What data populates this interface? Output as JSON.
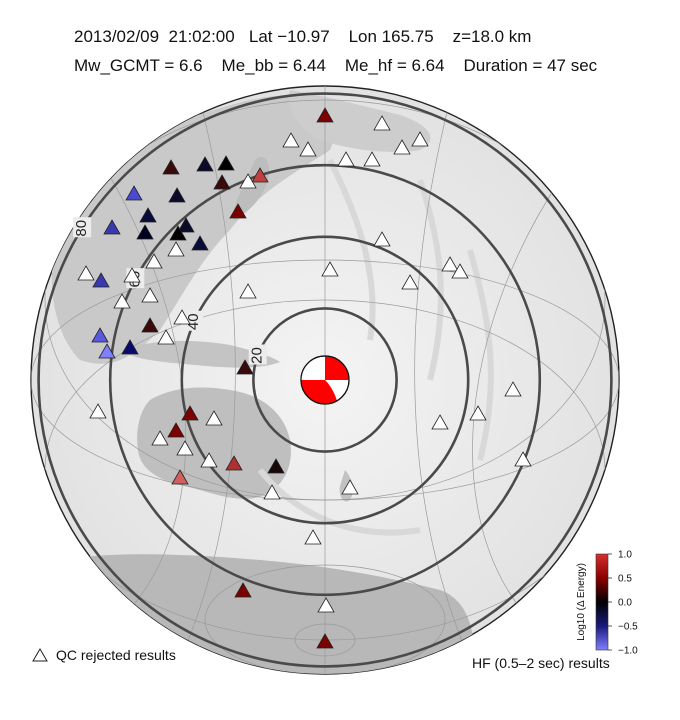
{
  "header": {
    "line1": "2013/02/09  21:02:00   Lat −10.97    Lon 165.75    z=18.0 km",
    "line2": "Mw_GCMT = 6.6    Me_bb = 6.44    Me_hf = 6.64    Duration = 47 sec"
  },
  "distance_rings": [
    {
      "deg": 20,
      "label": "20"
    },
    {
      "deg": 40,
      "label": "40"
    },
    {
      "deg": 60,
      "label": "60"
    },
    {
      "deg": 80,
      "label": "80"
    }
  ],
  "colorbar": {
    "title": "Log10 (Δ Energy)",
    "ticks": [
      "1.0",
      "0.5",
      "0.0",
      "−0.5",
      "−1.0"
    ],
    "colors": {
      "high": "#c62828",
      "mid": "#000000",
      "low": "#5b5bff"
    }
  },
  "legend": {
    "qc_rejected": "QC rejected results",
    "hf_label": "HF (0.5–2 sec) results"
  },
  "colors": {
    "ring": "#4a4a4a",
    "rejected_fill": "#ffffff",
    "beachball": "#ff0000"
  },
  "icons": {
    "station": "triangle-icon",
    "epicenter": "focal-mechanism-beachball"
  }
}
